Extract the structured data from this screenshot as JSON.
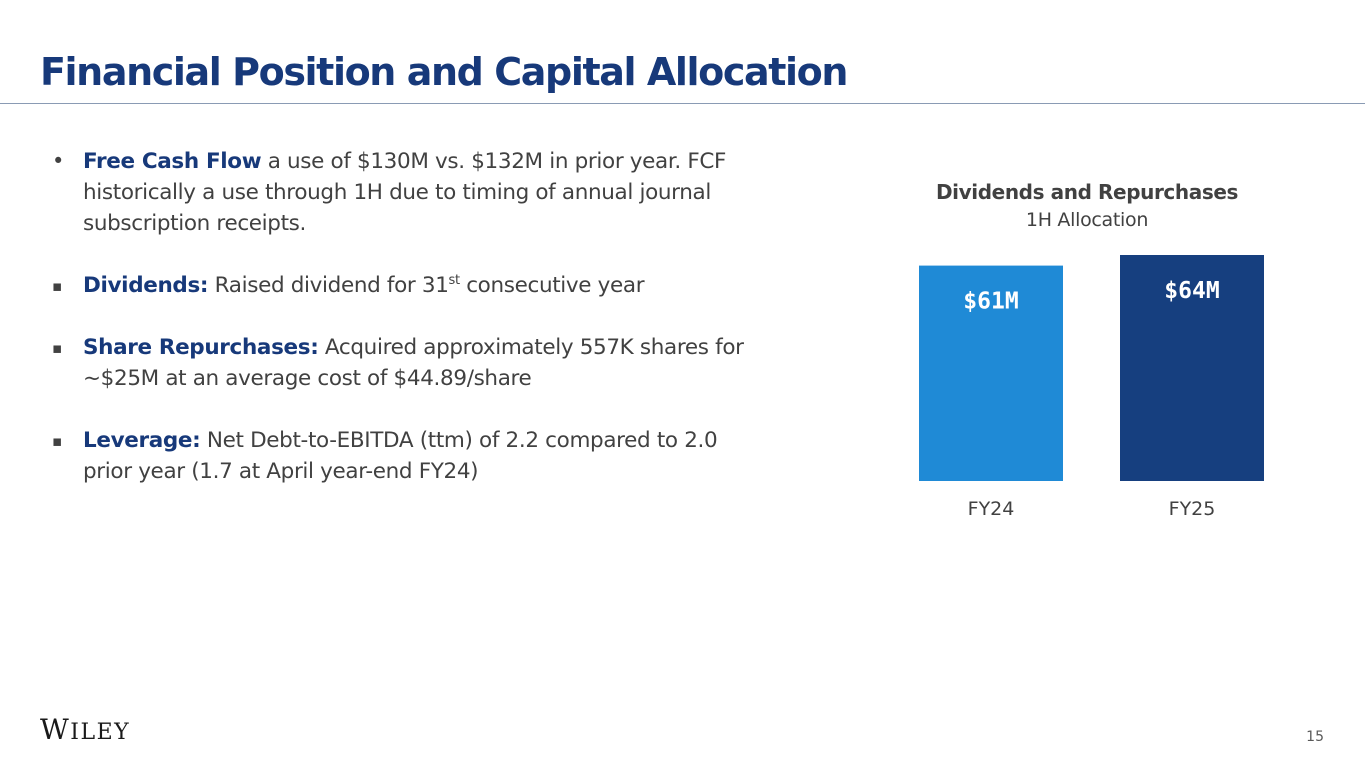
{
  "page": {
    "title": "Financial Position and Capital Allocation",
    "page_number": "15",
    "logo": {
      "text": "WILEY",
      "initial": "W",
      "rest": "ILEY"
    }
  },
  "bullets": [
    {
      "marker": "•",
      "lead": "Free Cash Flow",
      "text": " a use of $130M vs. $132M in prior year.  FCF historically a use through 1H due to timing of annual journal subscription receipts."
    },
    {
      "marker": "▪",
      "lead": "Dividends:",
      "text_before_sup": " Raised dividend for 31",
      "sup": "st",
      "text_after_sup": " consecutive year"
    },
    {
      "marker": "▪",
      "lead": "Share Repurchases:",
      "text": " Acquired approximately 557K shares for ~$25M at an average cost of $44.89/share"
    },
    {
      "marker": "▪",
      "lead": "Leverage:",
      "text": " Net Debt-to-EBITDA (ttm) of 2.2 compared to 2.0 prior year (1.7 at April year-end FY24)"
    }
  ],
  "chart_data": {
    "type": "bar",
    "title": "Dividends and Repurchases",
    "subtitle": "1H Allocation",
    "categories": [
      "FY24",
      "FY25"
    ],
    "values": [
      61,
      64
    ],
    "value_labels": [
      "$61M",
      "$64M"
    ],
    "unit": "$M",
    "bar_colors": [
      "#1f8ad6",
      "#163f7f"
    ],
    "ylim": [
      0,
      64
    ],
    "grid": false,
    "legend": "none"
  },
  "colors": {
    "title": "#17397a",
    "body_text": "#414141",
    "rule": "#8a9bb4"
  }
}
